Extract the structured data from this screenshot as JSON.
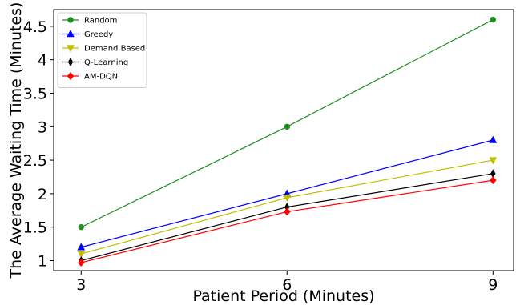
{
  "chart_data": {
    "type": "line",
    "title": "",
    "xlabel": "Patient  Period (Minutes)",
    "ylabel": "The Average Waiting Time (Minutes)",
    "x": [
      3,
      6,
      9
    ],
    "x_ticks": [
      "3",
      "6",
      "9"
    ],
    "y_ticks": [
      "1",
      "1.5",
      "2",
      "2.5",
      "3",
      "3.5",
      "4",
      "4.5"
    ],
    "xlim": [
      2.6,
      9.3
    ],
    "ylim": [
      0.85,
      4.75
    ],
    "grid": false,
    "legend_position": "top-left",
    "series": [
      {
        "name": "Random",
        "values": [
          1.5,
          3.0,
          4.6
        ],
        "color": "#1f8f1f",
        "marker": "circle"
      },
      {
        "name": "Greedy",
        "values": [
          1.2,
          2.0,
          2.8
        ],
        "color": "#0000ff",
        "marker": "triangle-up"
      },
      {
        "name": "Demand Based",
        "values": [
          1.1,
          1.94,
          2.5
        ],
        "color": "#bfbf00",
        "marker": "triangle-down"
      },
      {
        "name": "Q-Learning",
        "values": [
          1.0,
          1.8,
          2.3
        ],
        "color": "#000000",
        "marker": "thin-diamond"
      },
      {
        "name": "AM-DQN",
        "values": [
          0.97,
          1.73,
          2.2
        ],
        "color": "#ff0000",
        "marker": "diamond"
      }
    ]
  }
}
